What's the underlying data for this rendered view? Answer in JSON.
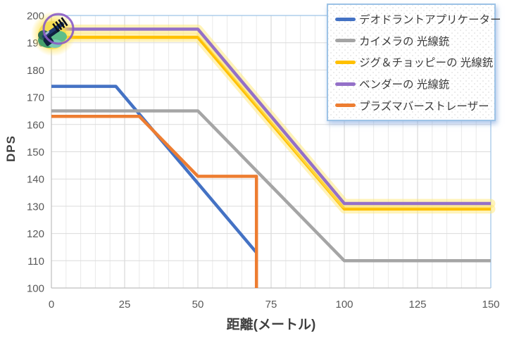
{
  "chart_data": {
    "type": "line",
    "title": "",
    "xlabel": "距離(メートル)",
    "ylabel": "DPS",
    "xlim": [
      0,
      150
    ],
    "ylim": [
      100,
      200
    ],
    "x_major_ticks": [
      0,
      25,
      50,
      75,
      100,
      125,
      150
    ],
    "x_minor_step": 5,
    "y_ticks": [
      100,
      110,
      120,
      130,
      140,
      150,
      160,
      170,
      180,
      190,
      200
    ],
    "grid": "horizontal major every 10, vertical minor every 5, vertical major every 25",
    "legend_position": "top-right-overlay",
    "series": [
      {
        "name": "デオドラントアプリケーター",
        "color": "#4472C4",
        "points": [
          [
            0,
            174
          ],
          [
            22,
            174
          ],
          [
            70,
            113
          ]
        ]
      },
      {
        "name": "カイメラの 光線銃",
        "color": "#A5A5A5",
        "points": [
          [
            0,
            165
          ],
          [
            50,
            165
          ],
          [
            100,
            110
          ],
          [
            150,
            110
          ]
        ]
      },
      {
        "name": "ジグ＆チョッピーの 光線銃",
        "color": "#FFC000",
        "glow": "#FFE873",
        "points": [
          [
            0,
            192
          ],
          [
            50,
            192
          ],
          [
            100,
            129
          ],
          [
            150,
            129
          ]
        ]
      },
      {
        "name": "ベンダーの 光線銃",
        "color": "#9470C8",
        "glow": "#FFE873",
        "points": [
          [
            0,
            195
          ],
          [
            50,
            195
          ],
          [
            100,
            131
          ],
          [
            150,
            131
          ]
        ]
      },
      {
        "name": "プラズマバーストレーザー",
        "color": "#ED7D31",
        "points": [
          [
            0,
            163
          ],
          [
            30,
            163
          ],
          [
            50,
            141
          ],
          [
            70,
            141
          ],
          [
            70,
            100
          ]
        ]
      }
    ]
  },
  "axes": {
    "x_title": "距離(メートル)",
    "y_title": "DPS"
  },
  "colors": {
    "axis_line": "#BFBFBF",
    "grid_horizontal": "#DBDBDB",
    "grid_minor_vertical": "#E9E9E9",
    "grid_major_vertical": "#D2D2D2",
    "plot_border": "#9DC3E6",
    "tick_label": "#595959",
    "axis_title": "#3F3F3F",
    "legend_border": "#9DC3E6"
  },
  "marker_icon": {
    "name": "ray-gun-weapon-icon",
    "glow": "#FFE14D",
    "ring": "#8A5BC6",
    "gun_body": "#1E3A6E",
    "gun_dark": "#10213F",
    "accent_green": "#46A06B",
    "accent_dark_green": "#2E6B4F",
    "accent_teal": "#79C9B4"
  }
}
